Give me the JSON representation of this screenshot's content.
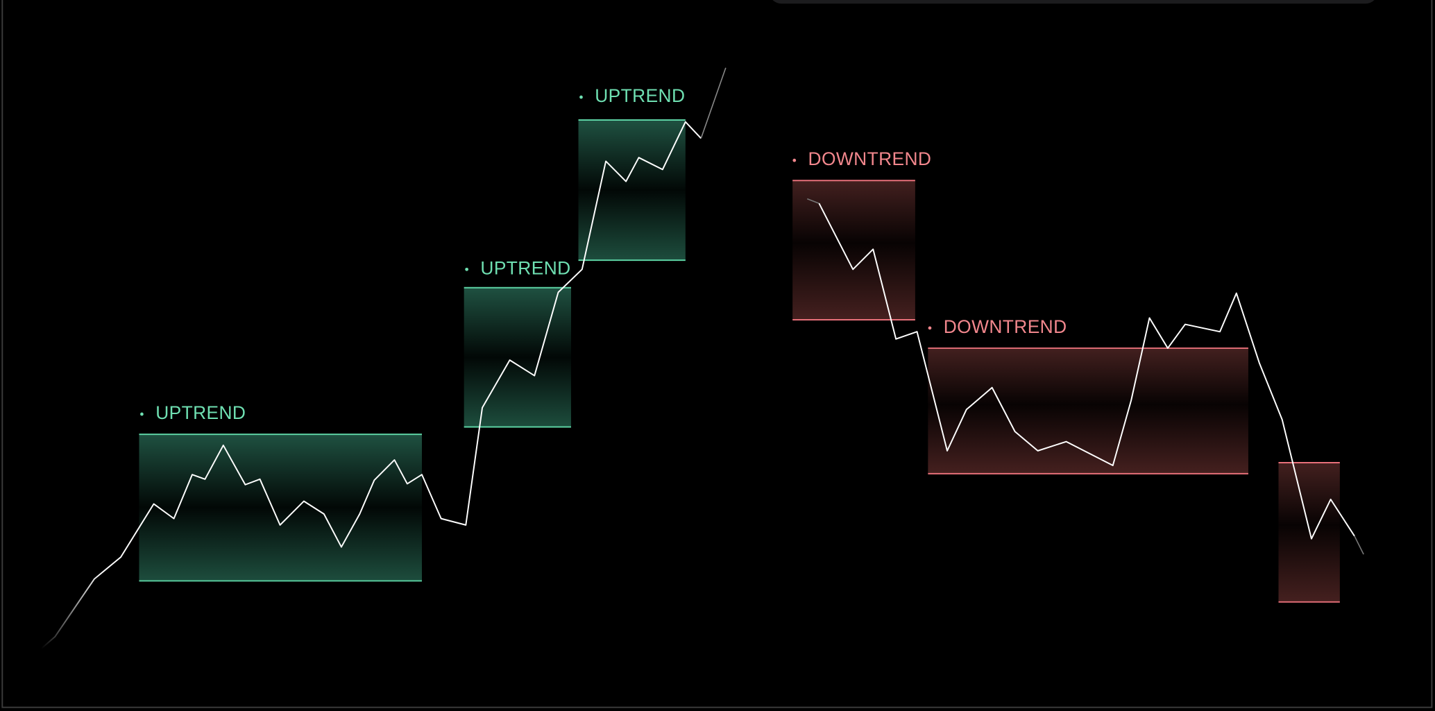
{
  "zones": [
    {
      "label": "UPTREND"
    },
    {
      "label": "UPTREND"
    },
    {
      "label": "UPTREND"
    },
    {
      "label": "DOWNTREND"
    },
    {
      "label": "DOWNTREND"
    }
  ]
}
